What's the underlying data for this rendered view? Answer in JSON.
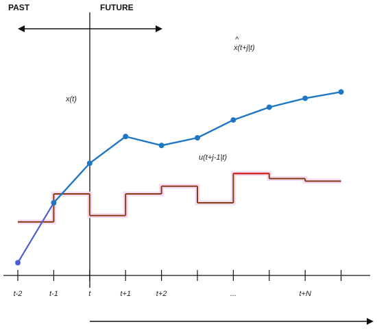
{
  "headers": {
    "past": "PAST",
    "future": "FUTURE"
  },
  "labels": {
    "state_current": "x(t)",
    "state_predicted": "x(t+j|t)",
    "state_predicted_hat": "^",
    "control_sequence": "u(t+j-1|t)"
  },
  "ticks": [
    "t-2",
    "t-1",
    "t",
    "t+1",
    "t+2",
    "",
    "...",
    "",
    "t+N",
    ""
  ],
  "colors": {
    "state": "#1f77c4",
    "state_past_segment": "#4a5fd0",
    "control_past": "#8a3a10",
    "control_future": "#e02020",
    "control_glow": "#f3d7f3",
    "axis": "#111111"
  },
  "chart_data": {
    "type": "line",
    "x": [
      0,
      1,
      2,
      3,
      4,
      5,
      6,
      7,
      8,
      9
    ],
    "state_series": {
      "x": [
        0,
        1,
        2,
        3,
        4,
        5,
        6,
        7,
        8,
        9
      ],
      "values": [
        0.1,
        0.57,
        0.88,
        1.09,
        1.02,
        1.08,
        1.22,
        1.32,
        1.39,
        1.44
      ]
    },
    "control_series": {
      "steps": [
        {
          "x_start": 0,
          "x_end": 1,
          "value": 0.42
        },
        {
          "x_start": 1,
          "x_end": 2,
          "value": 0.64
        },
        {
          "x_start": 2,
          "x_end": 3,
          "value": 0.47
        },
        {
          "x_start": 3,
          "x_end": 4,
          "value": 0.64
        },
        {
          "x_start": 4,
          "x_end": 5,
          "value": 0.7
        },
        {
          "x_start": 5,
          "x_end": 6,
          "value": 0.57
        },
        {
          "x_start": 6,
          "x_end": 7,
          "value": 0.8
        },
        {
          "x_start": 7,
          "x_end": 8,
          "value": 0.76
        },
        {
          "x_start": 8,
          "x_end": 9,
          "value": 0.74
        }
      ]
    },
    "current_time_index": 2
  }
}
